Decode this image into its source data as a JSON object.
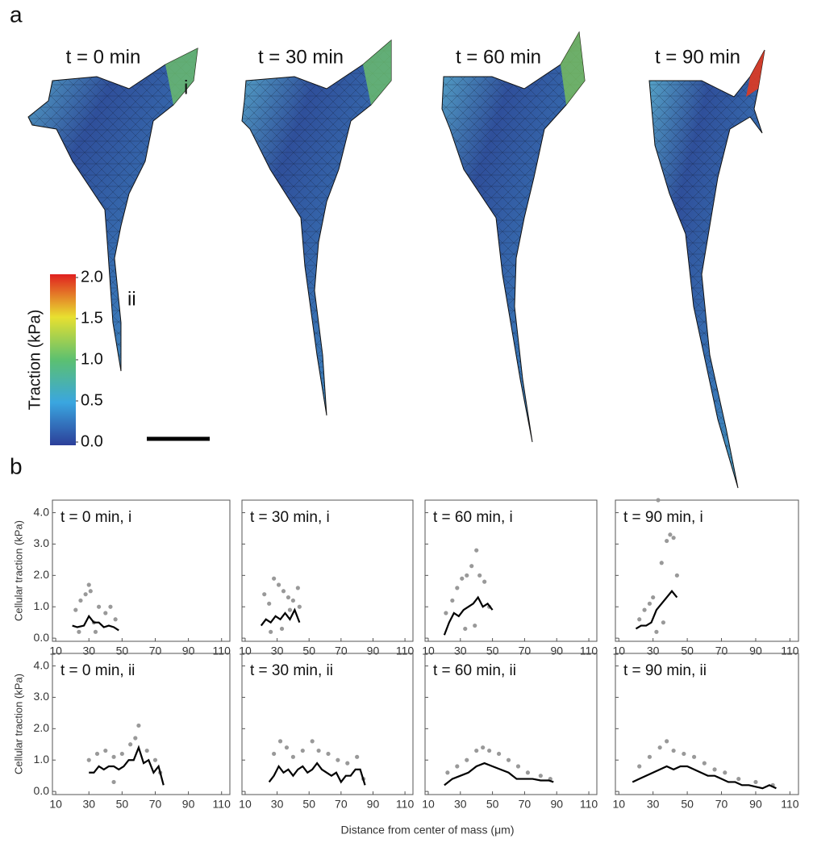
{
  "panel_a": {
    "letter": "a",
    "frames": [
      {
        "title": "t = 0 min"
      },
      {
        "title": "t = 30 min"
      },
      {
        "title": "t = 60 min"
      },
      {
        "title": "t = 90 min"
      }
    ],
    "region_labels": [
      "i",
      "ii"
    ],
    "colorbar": {
      "label": "Traction (kPa)",
      "lim": [
        0,
        2
      ],
      "ticks": [
        {
          "value": 0,
          "label": "0.0"
        },
        {
          "value": 0.5,
          "label": "0.5"
        },
        {
          "value": 1,
          "label": "1.0"
        },
        {
          "value": 1.5,
          "label": "1.5"
        },
        {
          "value": 2,
          "label": "2.0"
        }
      ]
    }
  },
  "panel_b": {
    "letter": "b"
  },
  "chart_data": {
    "type": "scatter",
    "xlabel": "Distance from center of mass (μm)",
    "ylabel": "Cellular traction (kPa)",
    "xlim": [
      8,
      115
    ],
    "ylim": [
      -0.1,
      4.4
    ],
    "xticks": [
      10,
      30,
      50,
      70,
      90,
      110
    ],
    "yticks": [
      {
        "value": 0,
        "label": "0.0"
      },
      {
        "value": 1,
        "label": "1.0"
      },
      {
        "value": 2,
        "label": "2.0"
      },
      {
        "value": 3,
        "label": "3.0"
      },
      {
        "value": 4,
        "label": "4.0"
      }
    ],
    "line_color": "#000000",
    "point_color": "#999999",
    "panels": [
      {
        "title": "t = 0 min, i",
        "x": [
          20,
          23,
          27,
          30,
          33,
          36,
          39,
          42,
          45,
          48
        ],
        "values": [
          0.4,
          0.35,
          0.4,
          0.7,
          0.5,
          0.5,
          0.35,
          0.4,
          0.35,
          0.25
        ],
        "points_x": [
          22,
          25,
          28,
          30,
          31,
          33,
          36,
          40,
          43,
          46,
          24,
          34
        ],
        "points_y": [
          0.9,
          1.2,
          1.4,
          1.7,
          1.5,
          0.5,
          1.0,
          0.8,
          1.0,
          0.6,
          0.2,
          0.2
        ]
      },
      {
        "title": "t = 30 min, i",
        "x": [
          20,
          23,
          26,
          29,
          32,
          35,
          38,
          41,
          44
        ],
        "values": [
          0.4,
          0.6,
          0.5,
          0.7,
          0.6,
          0.8,
          0.6,
          0.9,
          0.5
        ],
        "points_x": [
          22,
          25,
          28,
          31,
          34,
          37,
          40,
          43,
          26,
          33,
          38,
          44
        ],
        "points_y": [
          1.4,
          1.1,
          1.9,
          1.7,
          1.5,
          1.3,
          1.2,
          1.6,
          0.2,
          0.3,
          0.9,
          1.0
        ]
      },
      {
        "title": "t = 60 min, i",
        "x": [
          20,
          23,
          26,
          29,
          32,
          35,
          38,
          41,
          44,
          47,
          50
        ],
        "values": [
          0.1,
          0.5,
          0.8,
          0.7,
          0.9,
          1.0,
          1.1,
          1.3,
          1.0,
          1.1,
          0.9
        ],
        "points_x": [
          21,
          25,
          28,
          31,
          34,
          37,
          40,
          42,
          45,
          48,
          33,
          39
        ],
        "points_y": [
          0.8,
          1.2,
          1.6,
          1.9,
          2.0,
          2.3,
          2.8,
          2.0,
          1.8,
          1.0,
          0.3,
          0.4
        ]
      },
      {
        "title": "t = 90 min, i",
        "x": [
          20,
          23,
          26,
          29,
          32,
          35,
          38,
          41,
          44
        ],
        "values": [
          0.3,
          0.4,
          0.4,
          0.5,
          0.9,
          1.1,
          1.3,
          1.5,
          1.3
        ],
        "points_x": [
          22,
          25,
          28,
          30,
          33,
          35,
          38,
          40,
          42,
          44,
          32,
          36
        ],
        "points_y": [
          0.6,
          0.9,
          1.1,
          1.3,
          4.4,
          2.4,
          3.1,
          3.3,
          3.2,
          2.0,
          0.2,
          0.5
        ]
      },
      {
        "title": "t = 0 min, ii",
        "x": [
          30,
          33,
          36,
          39,
          42,
          45,
          48,
          51,
          54,
          57,
          60,
          63,
          66,
          69,
          72,
          75
        ],
        "values": [
          0.6,
          0.6,
          0.8,
          0.7,
          0.8,
          0.8,
          0.7,
          0.8,
          1.0,
          1.0,
          1.4,
          0.9,
          1.0,
          0.6,
          0.8,
          0.2
        ],
        "points_x": [
          30,
          35,
          40,
          45,
          50,
          55,
          58,
          60,
          65,
          70,
          73,
          45
        ],
        "points_y": [
          1.0,
          1.2,
          1.3,
          1.1,
          1.2,
          1.5,
          1.7,
          2.1,
          1.3,
          1.0,
          0.6,
          0.3
        ]
      },
      {
        "title": "t = 30 min, ii",
        "x": [
          25,
          28,
          31,
          34,
          37,
          40,
          43,
          46,
          49,
          52,
          55,
          58,
          61,
          64,
          67,
          70,
          73,
          76,
          79,
          82,
          85
        ],
        "values": [
          0.3,
          0.5,
          0.8,
          0.6,
          0.7,
          0.5,
          0.7,
          0.8,
          0.6,
          0.7,
          0.9,
          0.7,
          0.6,
          0.5,
          0.6,
          0.3,
          0.5,
          0.5,
          0.7,
          0.7,
          0.2
        ],
        "points_x": [
          28,
          32,
          36,
          40,
          46,
          52,
          56,
          62,
          68,
          74,
          80,
          84
        ],
        "points_y": [
          1.2,
          1.6,
          1.4,
          1.1,
          1.3,
          1.6,
          1.3,
          1.2,
          1.0,
          0.9,
          1.1,
          0.4
        ]
      },
      {
        "title": "t = 60 min, ii",
        "x": [
          20,
          25,
          30,
          35,
          40,
          45,
          50,
          55,
          60,
          65,
          70,
          75,
          80,
          85,
          88
        ],
        "values": [
          0.2,
          0.4,
          0.5,
          0.6,
          0.8,
          0.9,
          0.8,
          0.7,
          0.6,
          0.4,
          0.4,
          0.4,
          0.35,
          0.35,
          0.3
        ],
        "points_x": [
          22,
          28,
          34,
          40,
          44,
          48,
          54,
          60,
          66,
          72,
          80,
          86
        ],
        "points_y": [
          0.6,
          0.8,
          1.0,
          1.3,
          1.4,
          1.3,
          1.2,
          1.0,
          0.8,
          0.6,
          0.5,
          0.4
        ]
      },
      {
        "title": "t = 90 min, ii",
        "x": [
          18,
          22,
          26,
          30,
          34,
          38,
          42,
          46,
          50,
          54,
          58,
          62,
          66,
          70,
          74,
          78,
          82,
          86,
          90,
          94,
          98,
          102
        ],
        "values": [
          0.3,
          0.4,
          0.5,
          0.6,
          0.7,
          0.8,
          0.7,
          0.8,
          0.8,
          0.7,
          0.6,
          0.5,
          0.5,
          0.4,
          0.3,
          0.3,
          0.2,
          0.2,
          0.15,
          0.1,
          0.2,
          0.1
        ],
        "points_x": [
          22,
          28,
          34,
          38,
          42,
          48,
          54,
          60,
          66,
          72,
          80,
          90,
          100
        ],
        "points_y": [
          0.8,
          1.1,
          1.4,
          1.6,
          1.3,
          1.2,
          1.1,
          0.9,
          0.7,
          0.6,
          0.4,
          0.3,
          0.2
        ]
      }
    ]
  }
}
